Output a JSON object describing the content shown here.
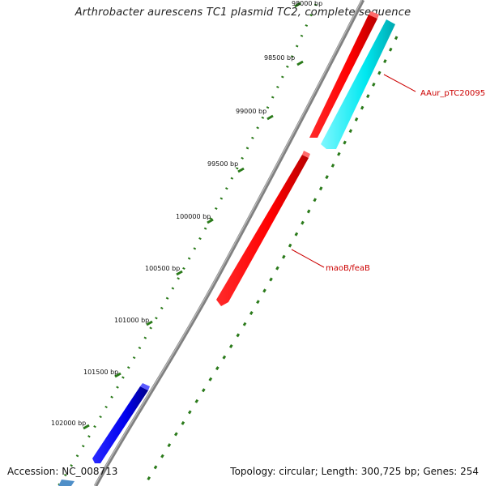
{
  "title": "Arthrobacter aurescens TC1 plasmid TC2, complete sequence",
  "footer": {
    "accession": "Accession: NC_008713",
    "summary": "Topology: circular; Length: 300,725 bp; Genes: 254"
  },
  "ruler": {
    "tick_labels": [
      "98000 bp",
      "98500 bp",
      "99000 bp",
      "99500 bp",
      "100000 bp",
      "100500 bp",
      "101000 bp",
      "101500 bp",
      "102000 bp"
    ]
  },
  "features": [
    {
      "name": "AAur_pTC20095",
      "color": "#ff0000",
      "labelled": true
    },
    {
      "name": "maoB/feaB",
      "color": "#ff0000",
      "labelled": true
    }
  ],
  "colors": {
    "backbone": "#808080",
    "ruler_ticks": "#2a7a1a",
    "gene_forward": "#ff0000",
    "gene_reverse_cyan": "#00e5ee",
    "gene_blue": "#0000ee",
    "gene_steel": "#4f8fc8",
    "label": "#cc0000"
  }
}
